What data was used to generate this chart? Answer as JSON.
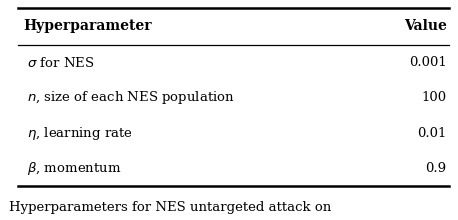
{
  "col_headers": [
    "Hyperparameter",
    "Value"
  ],
  "rows": [
    [
      "σ for NES",
      "0.001"
    ],
    [
      "n, size of each NES population",
      "100"
    ],
    [
      "η, learning rate",
      "0.01"
    ],
    [
      "β, momentum",
      "0.9"
    ]
  ],
  "caption": "Hyperparameters for NES untargeted attack on",
  "bg_color": "#ffffff",
  "header_fontsize": 10,
  "row_fontsize": 9.5,
  "caption_fontsize": 9.5
}
